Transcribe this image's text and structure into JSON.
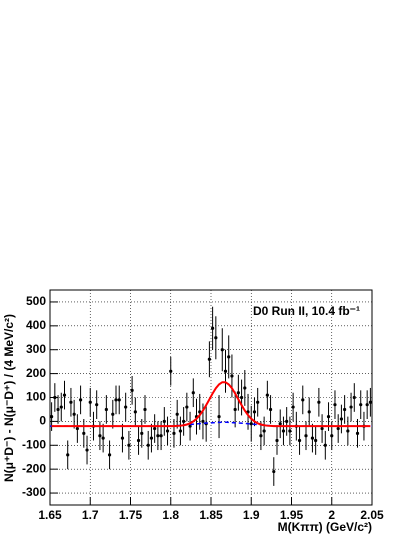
{
  "chart_data": {
    "type": "scatter",
    "annotation": "D0 Run II, 10.4 fb⁻¹",
    "y_label": "N(μ⁺D⁻) - N(μ⁻D⁺) / (4 MeV/c²)",
    "x_label": "M(Kππ)    (GeV/c²)",
    "xlim": [
      1.65,
      2.05
    ],
    "ylim": [
      -350,
      550
    ],
    "xticks": [
      1.65,
      1.7,
      1.75,
      1.8,
      1.85,
      1.9,
      1.95,
      2,
      2.05
    ],
    "yticks": [
      -300,
      -200,
      -100,
      0,
      100,
      200,
      300,
      400,
      500
    ],
    "grid": true,
    "color": "#000000",
    "x": [
      1.652,
      1.656,
      1.66,
      1.664,
      1.668,
      1.672,
      1.676,
      1.68,
      1.684,
      1.688,
      1.692,
      1.696,
      1.7,
      1.704,
      1.708,
      1.712,
      1.716,
      1.72,
      1.724,
      1.728,
      1.732,
      1.736,
      1.74,
      1.744,
      1.748,
      1.752,
      1.756,
      1.76,
      1.764,
      1.768,
      1.772,
      1.776,
      1.78,
      1.784,
      1.788,
      1.792,
      1.796,
      1.8,
      1.804,
      1.808,
      1.812,
      1.816,
      1.82,
      1.824,
      1.828,
      1.832,
      1.836,
      1.84,
      1.844,
      1.848,
      1.852,
      1.856,
      1.86,
      1.864,
      1.868,
      1.872,
      1.876,
      1.88,
      1.884,
      1.888,
      1.892,
      1.896,
      1.9,
      1.904,
      1.908,
      1.912,
      1.916,
      1.92,
      1.924,
      1.928,
      1.932,
      1.936,
      1.94,
      1.944,
      1.948,
      1.952,
      1.956,
      1.96,
      1.964,
      1.968,
      1.972,
      1.976,
      1.98,
      1.984,
      1.988,
      1.992,
      1.996,
      2,
      2.004,
      2.008,
      2.012,
      2.016,
      2.02,
      2.024,
      2.028,
      2.032,
      2.036,
      2.04,
      2.044,
      2.048
    ],
    "values": [
      20,
      100,
      50,
      60,
      110,
      -140,
      80,
      30,
      -30,
      90,
      -50,
      -120,
      80,
      -20,
      70,
      -60,
      -70,
      50,
      -140,
      30,
      90,
      90,
      -70,
      60,
      -100,
      130,
      40,
      -80,
      -50,
      50,
      -100,
      -70,
      -30,
      -60,
      -60,
      0,
      -40,
      210,
      -50,
      30,
      -40,
      0,
      60,
      -20,
      120,
      20,
      40,
      0,
      -10,
      260,
      390,
      350,
      20,
      300,
      210,
      270,
      190,
      50,
      120,
      100,
      140,
      40,
      -10,
      40,
      80,
      -60,
      -40,
      110,
      50,
      -210,
      -80,
      -10,
      -40,
      0,
      -40,
      60,
      -20,
      -80,
      90,
      -60,
      40,
      -70,
      -80,
      80,
      -30,
      -100,
      20,
      -60,
      70,
      -30,
      10,
      50,
      -40,
      60,
      100,
      -50,
      70,
      -20,
      70,
      80
    ],
    "errors": [
      60,
      60,
      60,
      60,
      60,
      60,
      60,
      60,
      60,
      60,
      60,
      60,
      60,
      60,
      60,
      60,
      60,
      60,
      60,
      60,
      60,
      60,
      60,
      60,
      60,
      60,
      60,
      60,
      60,
      60,
      60,
      60,
      60,
      60,
      60,
      60,
      60,
      60,
      60,
      60,
      60,
      60,
      60,
      60,
      60,
      75,
      75,
      75,
      75,
      75,
      90,
      90,
      90,
      90,
      90,
      90,
      90,
      75,
      75,
      75,
      75,
      75,
      75,
      60,
      60,
      60,
      60,
      60,
      60,
      60,
      60,
      60,
      60,
      60,
      60,
      60,
      60,
      60,
      60,
      60,
      60,
      60,
      60,
      60,
      60,
      60,
      60,
      60,
      60,
      60,
      60,
      60,
      60,
      60,
      60,
      60,
      60,
      60,
      60,
      60
    ],
    "fit": {
      "color": "#ff0000",
      "values": [
        -20,
        -20,
        -20,
        -20,
        -20,
        -20,
        -20,
        -20,
        -20,
        -20,
        -20,
        -20,
        -20,
        -20,
        -20,
        -20,
        -20,
        -20,
        -20,
        -20,
        -20,
        -20,
        -20,
        -20,
        -20,
        -20,
        -20,
        -20,
        -20,
        -20,
        -20,
        -20,
        -20,
        -20,
        -20,
        -20,
        -20,
        -20,
        -20,
        -19,
        -18,
        -16,
        -13,
        -8,
        0,
        11,
        26,
        45,
        68,
        92,
        117,
        139,
        155,
        164,
        164,
        155,
        139,
        117,
        92,
        68,
        45,
        26,
        11,
        0,
        -8,
        -13,
        -16,
        -18,
        -19,
        -20,
        -20,
        -20,
        -20,
        -20,
        -20,
        -20,
        -20,
        -20,
        -20,
        -20,
        -20,
        -20,
        -20,
        -20,
        -20,
        -20,
        -20,
        -20,
        -20,
        -20,
        -20,
        -20,
        -20,
        -20,
        -20,
        -20,
        -20,
        -20,
        -20,
        -20
      ]
    },
    "background": {
      "color": "#0000ff",
      "x": [
        1.65,
        1.8,
        1.84,
        1.866,
        1.89,
        1.93,
        2.05
      ],
      "values": [
        -20,
        -20,
        -8,
        -3,
        -8,
        -20,
        -20
      ]
    }
  }
}
